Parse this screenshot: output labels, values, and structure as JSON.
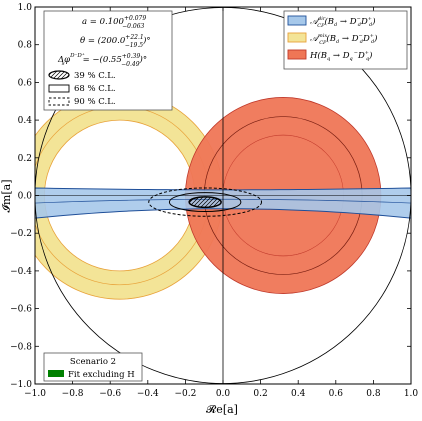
{
  "chart_data": {
    "type": "contour",
    "xlabel": "𝓡e[a]",
    "ylabel": "𝓘m[a]",
    "xlim": [
      -1.0,
      1.0
    ],
    "ylim": [
      -1.0,
      1.0
    ],
    "xticks": [
      "−1.0",
      "−0.8",
      "−0.6",
      "−0.4",
      "−0.2",
      "0.0",
      "0.2",
      "0.4",
      "0.6",
      "0.8",
      "1.0"
    ],
    "yticks": [
      "−1.0",
      "−0.8",
      "−0.6",
      "−0.4",
      "−0.2",
      "0.0",
      "0.2",
      "0.4",
      "0.6",
      "0.8",
      "1.0"
    ],
    "grid": false,
    "unit_circle_radius": 1.0,
    "info_box": {
      "line1": "a = 0.100",
      "line1_sup": "+0.079",
      "line1_sub": "−0.063",
      "line2": "θ = (200.0",
      "line2_sup": "+22.1",
      "line2_sub": "−19.5",
      "line2_end": ")°",
      "line3": "Δφ",
      "line3_sup": "D⁻D⁺",
      "line3_sub": "s",
      "line3_mid": "= −(0.55",
      "line3_sup2": "+0.39",
      "line3_sub2": "−0.49",
      "line3_end": ")°",
      "cl": [
        "39 % C.L.",
        "68 % C.L.",
        "90 % C.L."
      ]
    },
    "legend": {
      "placement": "top-right",
      "entries": [
        {
          "main": "𝒜",
          "sup": "dir",
          "sub": "CP",
          "rest": "(B",
          "rsub": "d",
          "arrow": " → D",
          "rsub2": "d",
          "rsup2": "−",
          "tail": "D",
          "tsub": "d",
          "tsup": "+",
          "close": ")",
          "color": "#a6c8ea",
          "edge": "#1f4f99"
        },
        {
          "main": "𝒜",
          "sup": "mix",
          "sub": "CP",
          "rest": "(B",
          "rsub": "d",
          "arrow": " → D",
          "rsub2": "d",
          "rsup2": "−",
          "tail": "D",
          "tsub": "d",
          "tsup": "+",
          "close": ")",
          "color": "#f3e497",
          "edge": "#e8a23a"
        },
        {
          "main": "H(B",
          "sup": "",
          "sub": "q",
          "rest": " → D",
          "rsub": "q",
          "arrow": "",
          "rsub2": "",
          "rsup2": "−",
          "tail": "D",
          "tsub": "q",
          "tsup": "+",
          "close": ")",
          "color": "#ef7656",
          "edge": "#c0392b"
        }
      ]
    },
    "scenario_box": {
      "title": "Scenario 2",
      "entry": "Fit excluding H",
      "color": "#008000"
    },
    "regions": {
      "H_band": {
        "center": [
          0.32,
          0.0
        ],
        "outer_r": 0.52,
        "inner_r": 0.32,
        "color": "#ef7656"
      },
      "mix_band": {
        "center": [
          -0.55,
          0.0
        ],
        "outer_r": 0.55,
        "inner_r": 0.4,
        "color": "#f3e497"
      },
      "dir_band": {
        "y_center": -0.02,
        "half_width_center": 0.05,
        "half_width_edge": 0.08,
        "color": "#a6c8ea"
      },
      "fit_center": [
        -0.095,
        -0.035
      ]
    }
  }
}
